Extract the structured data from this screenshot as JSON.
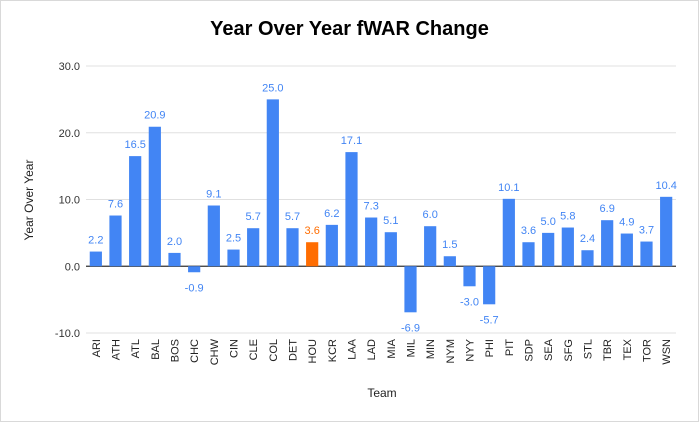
{
  "chart_data": {
    "type": "bar",
    "title": "Year Over Year fWAR Change",
    "xlabel": "Team",
    "ylabel": "Year Over Year",
    "ylim": [
      -10,
      30
    ],
    "yticks": [
      -10,
      0,
      10,
      20,
      30
    ],
    "ytick_labels": [
      "-10.0",
      "0.0",
      "10.0",
      "20.0",
      "30.0"
    ],
    "grid": true,
    "colors": {
      "default": "#4285f4",
      "highlight": "#ff6d01",
      "gridline": "#e0e0e0",
      "zeroline": "#333333"
    },
    "highlight_category": "HOU",
    "categories": [
      "ARI",
      "ATH",
      "ATL",
      "BAL",
      "BOS",
      "CHC",
      "CHW",
      "CIN",
      "CLE",
      "COL",
      "DET",
      "HOU",
      "KCR",
      "LAA",
      "LAD",
      "MIA",
      "MIL",
      "MIN",
      "NYM",
      "NYY",
      "PHI",
      "PIT",
      "SDP",
      "SEA",
      "SFG",
      "STL",
      "TBR",
      "TEX",
      "TOR",
      "WSN"
    ],
    "values": [
      2.2,
      7.6,
      16.5,
      20.9,
      2.0,
      -0.9,
      9.1,
      2.5,
      5.7,
      25.0,
      5.7,
      3.6,
      6.2,
      17.1,
      7.3,
      5.1,
      -6.9,
      6.0,
      1.5,
      -3.0,
      -5.7,
      10.1,
      3.6,
      5.0,
      5.8,
      2.4,
      6.9,
      4.9,
      3.7,
      10.4
    ],
    "data_labels": [
      "2.2",
      "7.6",
      "16.5",
      "20.9",
      "2.0",
      "-0.9",
      "9.1",
      "2.5",
      "5.7",
      "25.0",
      "5.7",
      "3.6",
      "6.2",
      "17.1",
      "7.3",
      "5.1",
      "-6.9",
      "6.0",
      "1.5",
      "-3.0",
      "-5.7",
      "10.1",
      "3.6",
      "5.0",
      "5.8",
      "2.4",
      "6.9",
      "4.9",
      "3.7",
      "10.4"
    ]
  }
}
